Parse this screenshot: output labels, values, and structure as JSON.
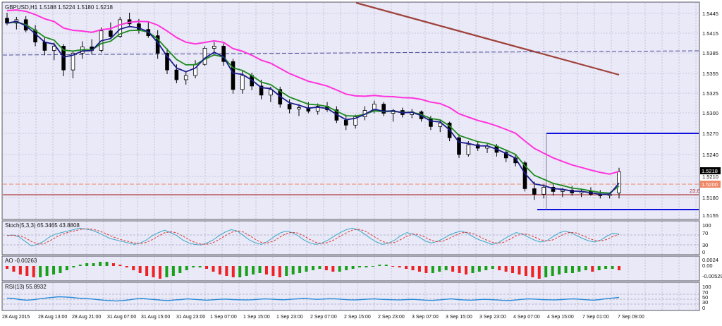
{
  "colors": {
    "background": "#e9e9f7",
    "grid": "#a9a9c8",
    "border": "#555566",
    "bull_candle": "#ffffff",
    "bear_candle": "#000000",
    "ema_fast": "#1c1c8c",
    "ema_mid": "#1d8a1d",
    "ema_slow": "#ff33dd",
    "trendline": "#a0413a",
    "blue_levels": "#1010dd",
    "dashed_orange": "#ee8866",
    "fib_line": "#b04040",
    "stoch_main": "#3aa9c9",
    "stoch_signal": "#dd3333",
    "ao_up": "#19a019",
    "ao_down": "#ee2222",
    "rsi_line": "#2a8ad8"
  },
  "main_panel": {
    "header": "GBPUSD,H1  1.5188 1.5224 1.5180 1.5218",
    "y_labels": [
      "1.5445",
      "1.5415",
      "1.5385",
      "1.5355",
      "1.5325",
      "1.5300",
      "1.5270",
      "1.5240",
      "1.5210",
      "1.5180",
      "1.5155"
    ],
    "price_tag": "1.5218",
    "level_tag": "1.5200",
    "fib_label": "23.6"
  },
  "stoch_panel": {
    "header": "Stoch(5,3,3) 65.3465 43.8808",
    "y_labels": [
      "100",
      "70",
      "30",
      "0"
    ],
    "main": [
      60,
      62,
      55,
      40,
      25,
      30,
      40,
      55,
      65,
      70,
      75,
      80,
      85,
      82,
      78,
      70,
      60,
      50,
      45,
      40,
      35,
      30,
      35,
      45,
      60,
      70,
      78,
      70,
      60,
      45,
      35,
      30,
      28,
      35,
      45,
      60,
      72,
      80,
      75,
      60,
      45,
      35,
      30,
      40,
      55,
      68,
      75,
      70,
      60,
      45,
      35,
      30,
      35,
      45,
      58,
      70,
      80,
      85,
      78,
      65,
      50,
      38,
      30,
      35,
      45,
      60,
      70,
      65,
      55,
      42,
      35,
      40,
      50,
      62,
      70,
      75,
      68,
      55,
      45,
      38,
      30,
      35,
      48,
      60,
      70,
      66,
      55,
      45,
      38,
      42,
      55,
      68,
      75,
      70,
      60,
      50,
      42,
      38,
      45,
      58,
      68,
      65
    ]
  },
  "ao_panel": {
    "header": "AO -0.00263",
    "y_labels": [
      "0.0024",
      "0.00",
      "-0.00529"
    ],
    "bars": [
      -2,
      -4,
      -6,
      -7,
      -8,
      -8,
      -7,
      -6,
      -5,
      -3,
      -1,
      1,
      2,
      2,
      3,
      3,
      2,
      1,
      -1,
      -3,
      -5,
      -7,
      -8,
      -9,
      -8,
      -7,
      -5,
      -3,
      -1,
      -1,
      -2,
      -4,
      -6,
      -7,
      -8,
      -8,
      -7,
      -6,
      -5,
      -6,
      -7,
      -8,
      -7,
      -6,
      -5,
      -4,
      -3,
      -2,
      -3,
      -4,
      -4,
      -3,
      -2,
      -1,
      -1,
      0,
      1,
      1,
      0,
      -1,
      -2,
      -3,
      -4,
      -5,
      -5,
      -4,
      -3,
      -4,
      -5,
      -6,
      -5,
      -4,
      -3,
      -2,
      -3,
      -4,
      -5,
      -6,
      -7,
      -8,
      -9,
      -8,
      -7,
      -6,
      -5,
      -5,
      -4,
      -3,
      -4,
      -3,
      -2,
      -2,
      -3
    ]
  },
  "rsi_panel": {
    "header": "RSI(13) 55.8932",
    "y_labels": [
      "100",
      "70",
      "50",
      "30",
      "0"
    ],
    "values": [
      52,
      50,
      45,
      42,
      44,
      48,
      52,
      55,
      58,
      57,
      55,
      52,
      50,
      48,
      45,
      42,
      40,
      38,
      40,
      44,
      48,
      50,
      47,
      45,
      42,
      40,
      43,
      45,
      48,
      46,
      44,
      42,
      44,
      46,
      47,
      45,
      44,
      43,
      44,
      46,
      48,
      47,
      45,
      44,
      46,
      48,
      50,
      48,
      46,
      47,
      49,
      48,
      46,
      44,
      43,
      45,
      47,
      48,
      46,
      45,
      44,
      43,
      45,
      46,
      44,
      42,
      41,
      43,
      46,
      48,
      45,
      43,
      42,
      44,
      46,
      45,
      43,
      41,
      40,
      43,
      46,
      48,
      47,
      45,
      44,
      43,
      45,
      47,
      48,
      46,
      44,
      42,
      45,
      49,
      52,
      55
    ]
  },
  "x_labels": [
    "28 Aug 2015",
    "28 Aug 13:00",
    "28 Aug 21:00",
    "31 Aug 07:00",
    "31 Aug 15:00",
    "31 Aug 23:00",
    "1 Sep 07:00",
    "1 Sep 15:00",
    "1 Sep 23:00",
    "2 Sep 07:00",
    "2 Sep 15:00",
    "2 Sep 23:00",
    "3 Sep 07:00",
    "3 Sep 15:00",
    "3 Sep 23:00",
    "4 Sep 07:00",
    "4 Sep 15:00",
    "7 Sep 01:00",
    "7 Sep 09:00"
  ],
  "candles": [
    [
      1.5438,
      1.5446,
      1.5428,
      1.5431
    ],
    [
      1.5431,
      1.544,
      1.5422,
      1.5436
    ],
    [
      1.5436,
      1.5441,
      1.5418,
      1.5421
    ],
    [
      1.5421,
      1.5428,
      1.5398,
      1.5404
    ],
    [
      1.5404,
      1.5412,
      1.5385,
      1.5392
    ],
    [
      1.5392,
      1.5403,
      1.5378,
      1.5398
    ],
    [
      1.5398,
      1.5401,
      1.5355,
      1.5364
    ],
    [
      1.5364,
      1.5392,
      1.5352,
      1.5388
    ],
    [
      1.5388,
      1.5405,
      1.538,
      1.5397
    ],
    [
      1.5397,
      1.5408,
      1.5386,
      1.5392
    ],
    [
      1.5392,
      1.5425,
      1.5389,
      1.542
    ],
    [
      1.542,
      1.5432,
      1.5408,
      1.5412
    ],
    [
      1.5412,
      1.544,
      1.541,
      1.5436
    ],
    [
      1.5436,
      1.5446,
      1.5425,
      1.543
    ],
    [
      1.543,
      1.5437,
      1.5416,
      1.5422
    ],
    [
      1.5422,
      1.5434,
      1.541,
      1.5413
    ],
    [
      1.5413,
      1.5421,
      1.538,
      1.5388
    ],
    [
      1.5388,
      1.5395,
      1.5358,
      1.5364
    ],
    [
      1.5364,
      1.5372,
      1.5345,
      1.535
    ],
    [
      1.535,
      1.5361,
      1.5343,
      1.5356
    ],
    [
      1.5356,
      1.5378,
      1.5352,
      1.5372
    ],
    [
      1.5372,
      1.5398,
      1.537,
      1.5395
    ],
    [
      1.5395,
      1.5404,
      1.5388,
      1.5398
    ],
    [
      1.5398,
      1.5402,
      1.537,
      1.5376
    ],
    [
      1.5376,
      1.538,
      1.533,
      1.5336
    ],
    [
      1.5336,
      1.5364,
      1.533,
      1.5356
    ],
    [
      1.5356,
      1.536,
      1.5335,
      1.5341
    ],
    [
      1.5341,
      1.535,
      1.5322,
      1.5328
    ],
    [
      1.5328,
      1.534,
      1.5318,
      1.5336
    ],
    [
      1.5336,
      1.534,
      1.531,
      1.5315
    ],
    [
      1.5315,
      1.5322,
      1.5302,
      1.5308
    ],
    [
      1.5308,
      1.5315,
      1.5298,
      1.531
    ],
    [
      1.531,
      1.5318,
      1.5302,
      1.5305
    ],
    [
      1.5305,
      1.5316,
      1.53,
      1.5312
    ],
    [
      1.5312,
      1.5318,
      1.5304,
      1.5307
    ],
    [
      1.5307,
      1.5312,
      1.5288,
      1.5292
    ],
    [
      1.5292,
      1.53,
      1.5278,
      1.5285
    ],
    [
      1.5285,
      1.53,
      1.528,
      1.5297
    ],
    [
      1.5297,
      1.5312,
      1.5292,
      1.5306
    ],
    [
      1.5306,
      1.532,
      1.5302,
      1.5315
    ],
    [
      1.5315,
      1.5318,
      1.5298,
      1.5302
    ],
    [
      1.5302,
      1.5308,
      1.529,
      1.5306
    ],
    [
      1.5306,
      1.531,
      1.5296,
      1.53
    ],
    [
      1.53,
      1.5308,
      1.5295,
      1.5304
    ],
    [
      1.5304,
      1.5306,
      1.529,
      1.5294
    ],
    [
      1.5294,
      1.5298,
      1.5278,
      1.5283
    ],
    [
      1.5283,
      1.5292,
      1.5275,
      1.5288
    ],
    [
      1.5288,
      1.529,
      1.5262,
      1.5267
    ],
    [
      1.5267,
      1.5272,
      1.5238,
      1.5243
    ],
    [
      1.5243,
      1.5262,
      1.524,
      1.5257
    ],
    [
      1.5257,
      1.5262,
      1.5248,
      1.5252
    ],
    [
      1.5252,
      1.5258,
      1.5245,
      1.5255
    ],
    [
      1.5255,
      1.5258,
      1.524,
      1.5246
    ],
    [
      1.5246,
      1.525,
      1.5232,
      1.5238
    ],
    [
      1.5238,
      1.5244,
      1.5226,
      1.5231
    ],
    [
      1.5231,
      1.5234,
      1.519,
      1.5194
    ],
    [
      1.5194,
      1.5204,
      1.5178,
      1.5186
    ],
    [
      1.5186,
      1.52,
      1.518,
      1.5196
    ],
    [
      1.5196,
      1.5202,
      1.5184,
      1.519
    ],
    [
      1.519,
      1.5195,
      1.5182,
      1.5192
    ],
    [
      1.5192,
      1.5198,
      1.5184,
      1.5188
    ],
    [
      1.5188,
      1.5194,
      1.5182,
      1.519
    ],
    [
      1.519,
      1.5196,
      1.5184,
      1.5186
    ],
    [
      1.5186,
      1.5192,
      1.518,
      1.5184
    ],
    [
      1.5184,
      1.5188,
      1.518,
      1.5186
    ],
    [
      1.5188,
      1.5224,
      1.518,
      1.5218
    ]
  ]
}
